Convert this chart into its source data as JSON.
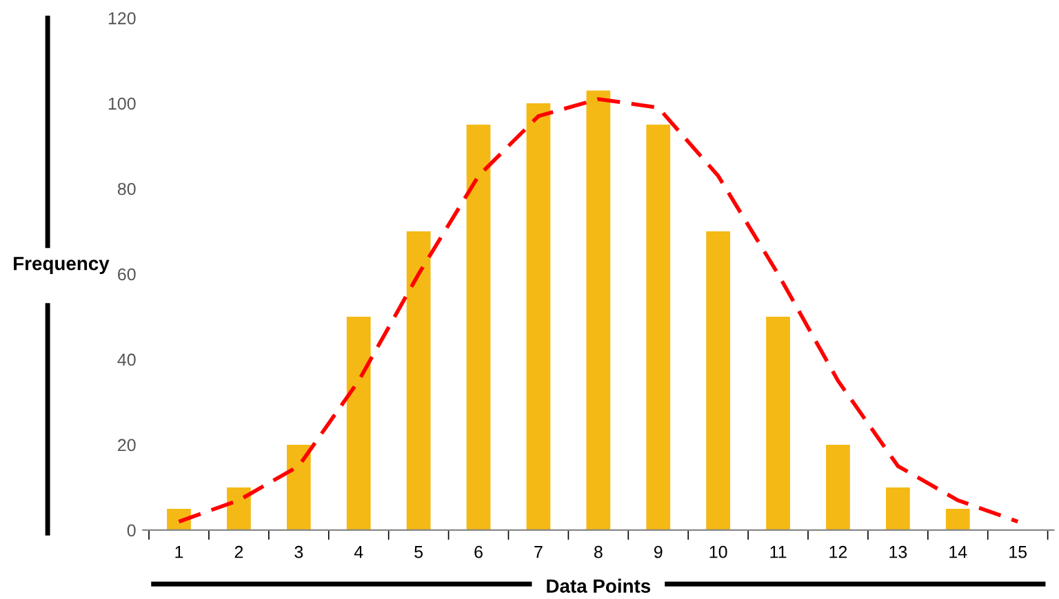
{
  "chart_data": {
    "type": "bar",
    "xlabel": "Data Points",
    "ylabel": "Frequency",
    "categories": [
      "1",
      "2",
      "3",
      "4",
      "5",
      "6",
      "7",
      "8",
      "9",
      "10",
      "11",
      "12",
      "13",
      "14",
      "15"
    ],
    "series": [
      {
        "color": "#f5b915",
        "values": [
          5,
          10,
          20,
          50,
          70,
          95,
          100,
          103,
          95,
          70,
          50,
          20,
          10,
          5,
          null
        ]
      },
      {
        "type": "line",
        "color": "#ff0000",
        "line_style": "dashed",
        "marker": "none",
        "values": [
          2,
          7,
          15,
          35,
          60,
          83,
          97,
          101,
          99,
          83,
          60,
          35,
          15,
          7,
          2
        ]
      }
    ],
    "ylim": [
      0,
      120
    ],
    "yticks": [
      0,
      20,
      40,
      60,
      80,
      100,
      120
    ],
    "grid": false,
    "legend": false
  }
}
